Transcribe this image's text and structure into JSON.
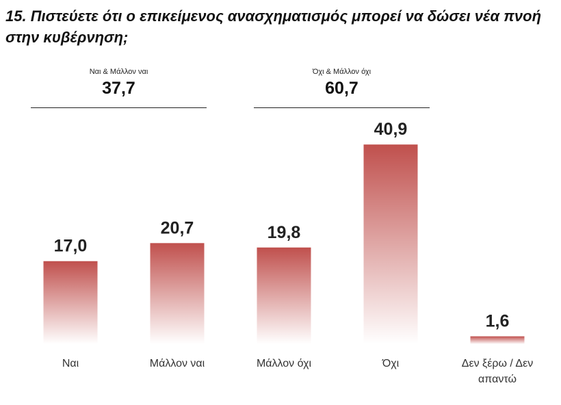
{
  "title": "15. Πιστεύετε ότι ο επικείμενος ανασχηματισμός μπορεί να δώσει νέα πνοή στην κυβέρνηση;",
  "groups": [
    {
      "label": "Ναι & Μάλλον ναι",
      "value": "37,7"
    },
    {
      "label": "Όχι & Μάλλον όχι",
      "value": "60,7"
    }
  ],
  "colors": {
    "bar_top": "#c0504d",
    "bar_bottom": "#ffffff",
    "text": "#222222"
  },
  "chart_data": {
    "type": "bar",
    "categories": [
      [
        "Ναι"
      ],
      [
        "Μάλλον ναι"
      ],
      [
        "Μάλλον όχι"
      ],
      [
        "Όχι"
      ],
      [
        "Δεν ξέρω / Δεν",
        "απαντώ"
      ]
    ],
    "values": [
      17.0,
      20.7,
      19.8,
      40.9,
      1.6
    ],
    "value_labels": [
      "17,0",
      "20,7",
      "19,8",
      "40,9",
      "1,6"
    ],
    "ylim": [
      0,
      45
    ],
    "grid": false,
    "legend": "none"
  }
}
